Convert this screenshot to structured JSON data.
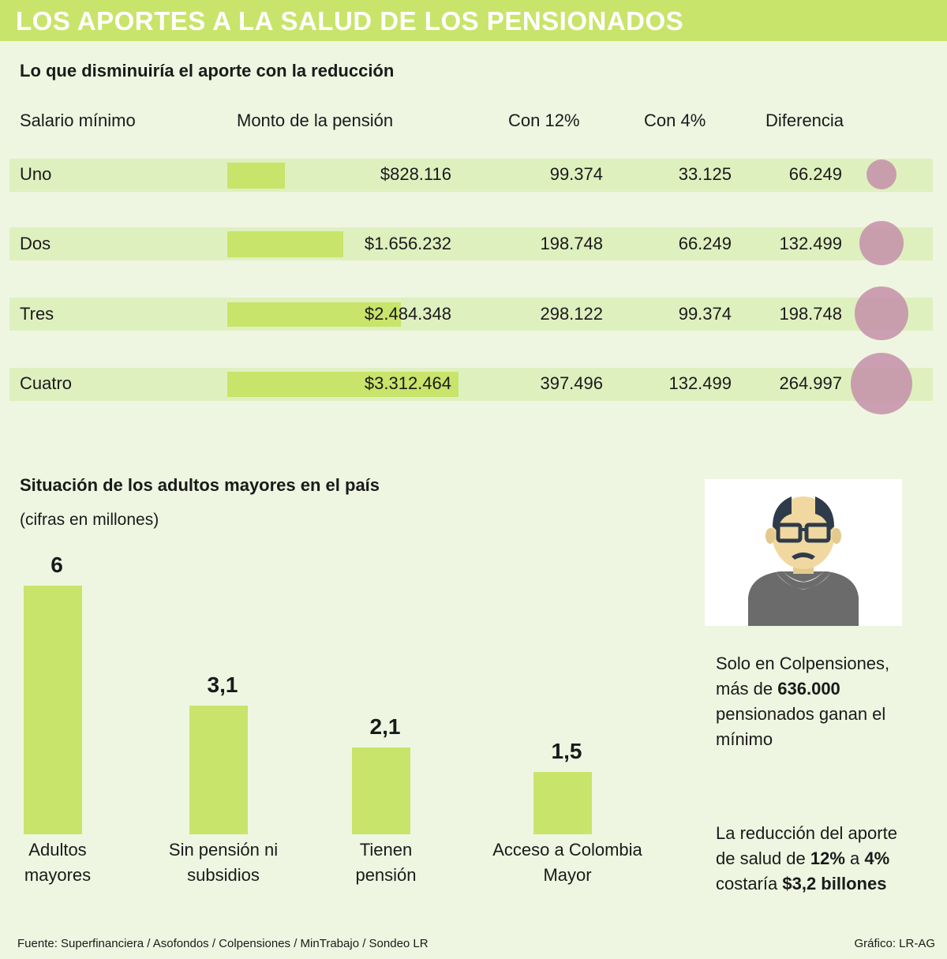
{
  "title": "LOS APORTES A LA SALUD DE LOS PENSIONADOS",
  "table_section": {
    "title": "Lo que disminuiría el aporte con la reducción",
    "headers": [
      "Salario mínimo",
      "Monto de la pensión",
      "Con 12%",
      "Con 4%",
      "Diferencia"
    ],
    "rows": [
      {
        "salario": "Uno",
        "monto": "$828.116",
        "con12": "99.374",
        "con4": "33.125",
        "diferencia": "66.249",
        "pension_value": 828116,
        "diferencia_value": 66249
      },
      {
        "salario": "Dos",
        "monto": "$1.656.232",
        "con12": "198.748",
        "con4": "66.249",
        "diferencia": "132.499",
        "pension_value": 1656232,
        "diferencia_value": 132499
      },
      {
        "salario": "Tres",
        "monto": "$2.484.348",
        "con12": "298.122",
        "con4": "99.374",
        "diferencia": "198.748",
        "pension_value": 2484348,
        "diferencia_value": 198748
      },
      {
        "salario": "Cuatro",
        "monto": "$3.312.464",
        "con12": "397.496",
        "con4": "132.499",
        "diferencia": "264.997",
        "pension_value": 3312464,
        "diferencia_value": 264997
      }
    ]
  },
  "chart_section": {
    "title": "Situación de los adultos mayores en el país",
    "subtitle": "(cifras en millones)"
  },
  "chart_data": {
    "type": "bar",
    "title": "Situación de los adultos mayores en el país",
    "subtitle": "(cifras en millones)",
    "categories": [
      "Adultos mayores",
      "Sin pensión ni subsidios",
      "Tienen pensión",
      "Acceso a Colombia Mayor"
    ],
    "category_lines": [
      [
        "Adultos",
        "mayores"
      ],
      [
        "Sin pensión ni",
        "subsidios"
      ],
      [
        "Tienen",
        "pensión"
      ],
      [
        "Acceso a Colombia",
        "Mayor"
      ]
    ],
    "values": [
      6,
      3.1,
      2.1,
      1.5
    ],
    "value_labels": [
      "6",
      "3,1",
      "2,1",
      "1,5"
    ],
    "ylim": [
      0,
      6
    ],
    "grid": false
  },
  "notes": {
    "note1": {
      "a": "Solo en Colpensiones,",
      "b": "más de ",
      "c": "636.000",
      "d": "pensionados ganan el",
      "e": "mínimo"
    },
    "note2": {
      "a": "La reducción del aporte",
      "b": "de salud de ",
      "c": "12%",
      "d": " a ",
      "e": "4%",
      "f": "costaría ",
      "g": "$3,2 billones"
    }
  },
  "footer": {
    "source": "Fuente: Superfinanciera / Asofondos / Colpensiones / MinTrabajo / Sondeo LR",
    "credit": "Gráfico: LR-AG"
  },
  "colors": {
    "accent": "#c9e46a",
    "row_band": "#dff0bf",
    "background": "#eef6e1",
    "circle": "#c48fa8"
  }
}
